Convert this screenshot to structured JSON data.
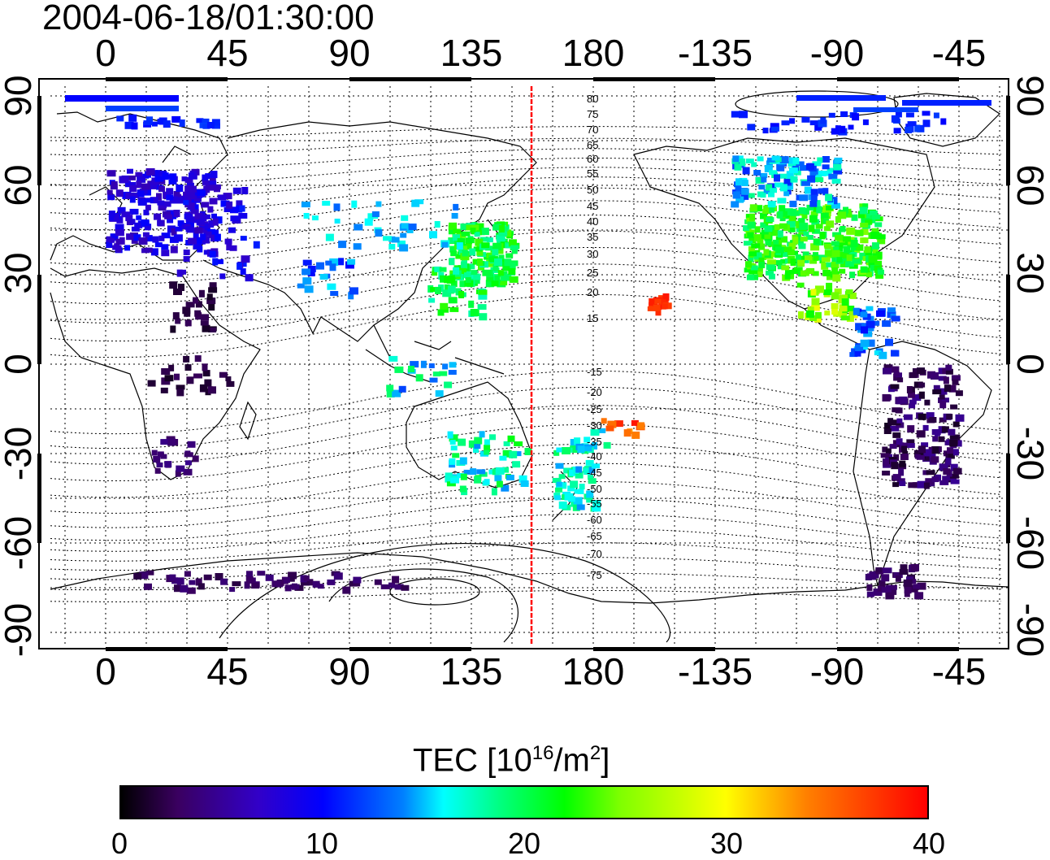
{
  "title": "2004-06-18/01:30:00",
  "axes": {
    "lon_ticks_top": [
      "0",
      "45",
      "90",
      "135",
      "180",
      "-135",
      "-90",
      "-45"
    ],
    "lon_ticks_bottom": [
      "0",
      "45",
      "90",
      "135",
      "180",
      "-135",
      "-90",
      "-45"
    ],
    "lat_ticks_left": [
      "90",
      "60",
      "30",
      "0",
      "-30",
      "-60",
      "-90"
    ],
    "lat_ticks_right": [
      "90",
      "60",
      "30",
      "0",
      "-30",
      "-60",
      "-90"
    ]
  },
  "contour_labels": [
    "80",
    "75",
    "70",
    "65",
    "60",
    "55",
    "50",
    "45",
    "40",
    "35",
    "30",
    "25",
    "20",
    "15",
    "-15",
    "-20",
    "-25",
    "-30",
    "-35",
    "-40",
    "-45",
    "-50",
    "-55",
    "-60",
    "-65",
    "-70",
    "-75"
  ],
  "colorbar": {
    "title": "TEC  [10",
    "title_sup1": "16",
    "title_mid": "/m",
    "title_sup2": "2",
    "title_end": "]",
    "ticks": [
      "0",
      "10",
      "20",
      "30",
      "40"
    ],
    "range": [
      0,
      40
    ]
  },
  "map_data": {
    "projection": "equirectangular",
    "lon_center": 180,
    "lat_range": [
      -90,
      90
    ],
    "red_meridian_lon": 157,
    "colors": {
      "line": "#000000",
      "meridian": "#ff0000"
    },
    "tec_clusters": [
      {
        "region": "Europe",
        "lon": 15,
        "lat": 50,
        "tec": 8
      },
      {
        "region": "Japan",
        "lon": 138,
        "lat": 36,
        "tec": 22
      },
      {
        "region": "North America",
        "lon": -95,
        "lat": 40,
        "tec": 22
      },
      {
        "region": "Mexico",
        "lon": -100,
        "lat": 20,
        "tec": 26
      },
      {
        "region": "Hawaii",
        "lon": -157,
        "lat": 21,
        "tec": 38
      },
      {
        "region": "Australia",
        "lon": 145,
        "lat": -35,
        "tec": 18
      },
      {
        "region": "New Zealand",
        "lon": 172,
        "lat": -42,
        "tec": 16
      },
      {
        "region": "South America",
        "lon": -60,
        "lat": -20,
        "tec": 3
      },
      {
        "region": "Antarctica",
        "lon": 60,
        "lat": -72,
        "tec": 3
      },
      {
        "region": "Africa",
        "lon": 30,
        "lat": -15,
        "tec": 3
      },
      {
        "region": "Arctic",
        "lon": -90,
        "lat": 82,
        "tec": 11
      }
    ]
  }
}
